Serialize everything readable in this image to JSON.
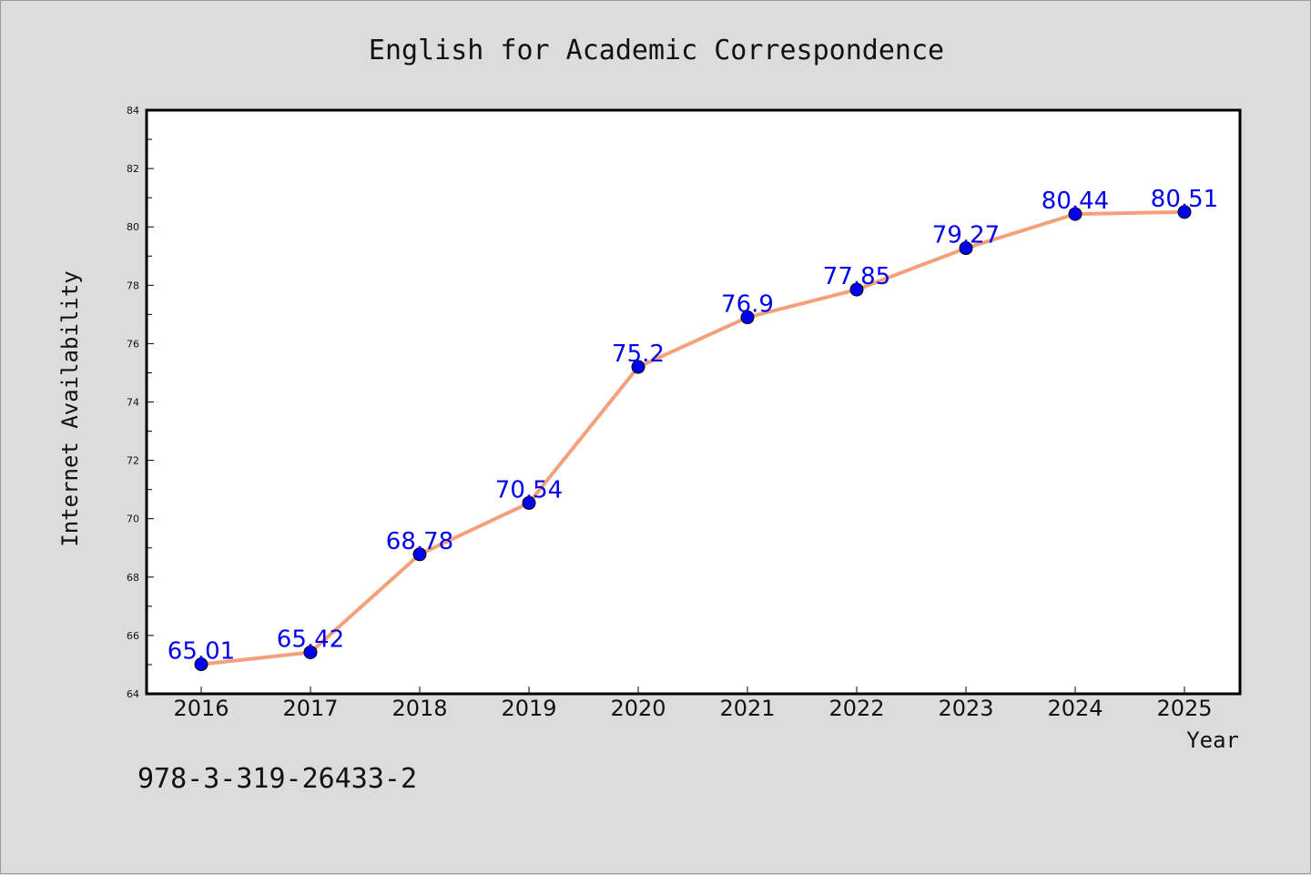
{
  "chart_data": {
    "type": "line",
    "title": "English for Academic Correspondence",
    "xlabel": "Year",
    "ylabel": "Internet Availability",
    "categories": [
      "2016",
      "2017",
      "2018",
      "2019",
      "2020",
      "2021",
      "2022",
      "2023",
      "2024",
      "2025"
    ],
    "values": [
      65.01,
      65.42,
      68.78,
      70.54,
      75.2,
      76.9,
      77.85,
      79.27,
      80.44,
      80.51
    ],
    "data_labels": [
      "65.01",
      "65.42",
      "68.78",
      "70.54",
      "75.2",
      "76.9",
      "77.85",
      "79.27",
      "80.44",
      "80.51"
    ],
    "ylim": [
      64,
      84
    ],
    "yticks": [
      "64",
      "66",
      "68",
      "70",
      "72",
      "74",
      "76",
      "78",
      "80",
      "82",
      "84"
    ],
    "grid": false,
    "legend": "none",
    "colors": {
      "line": "#f4a07a",
      "marker": "#0000ee",
      "label": "#0000ee",
      "background": "#dcdcdc",
      "plot_bg": "#ffffff"
    }
  },
  "footer": {
    "isbn": "978-3-319-26433-2"
  }
}
